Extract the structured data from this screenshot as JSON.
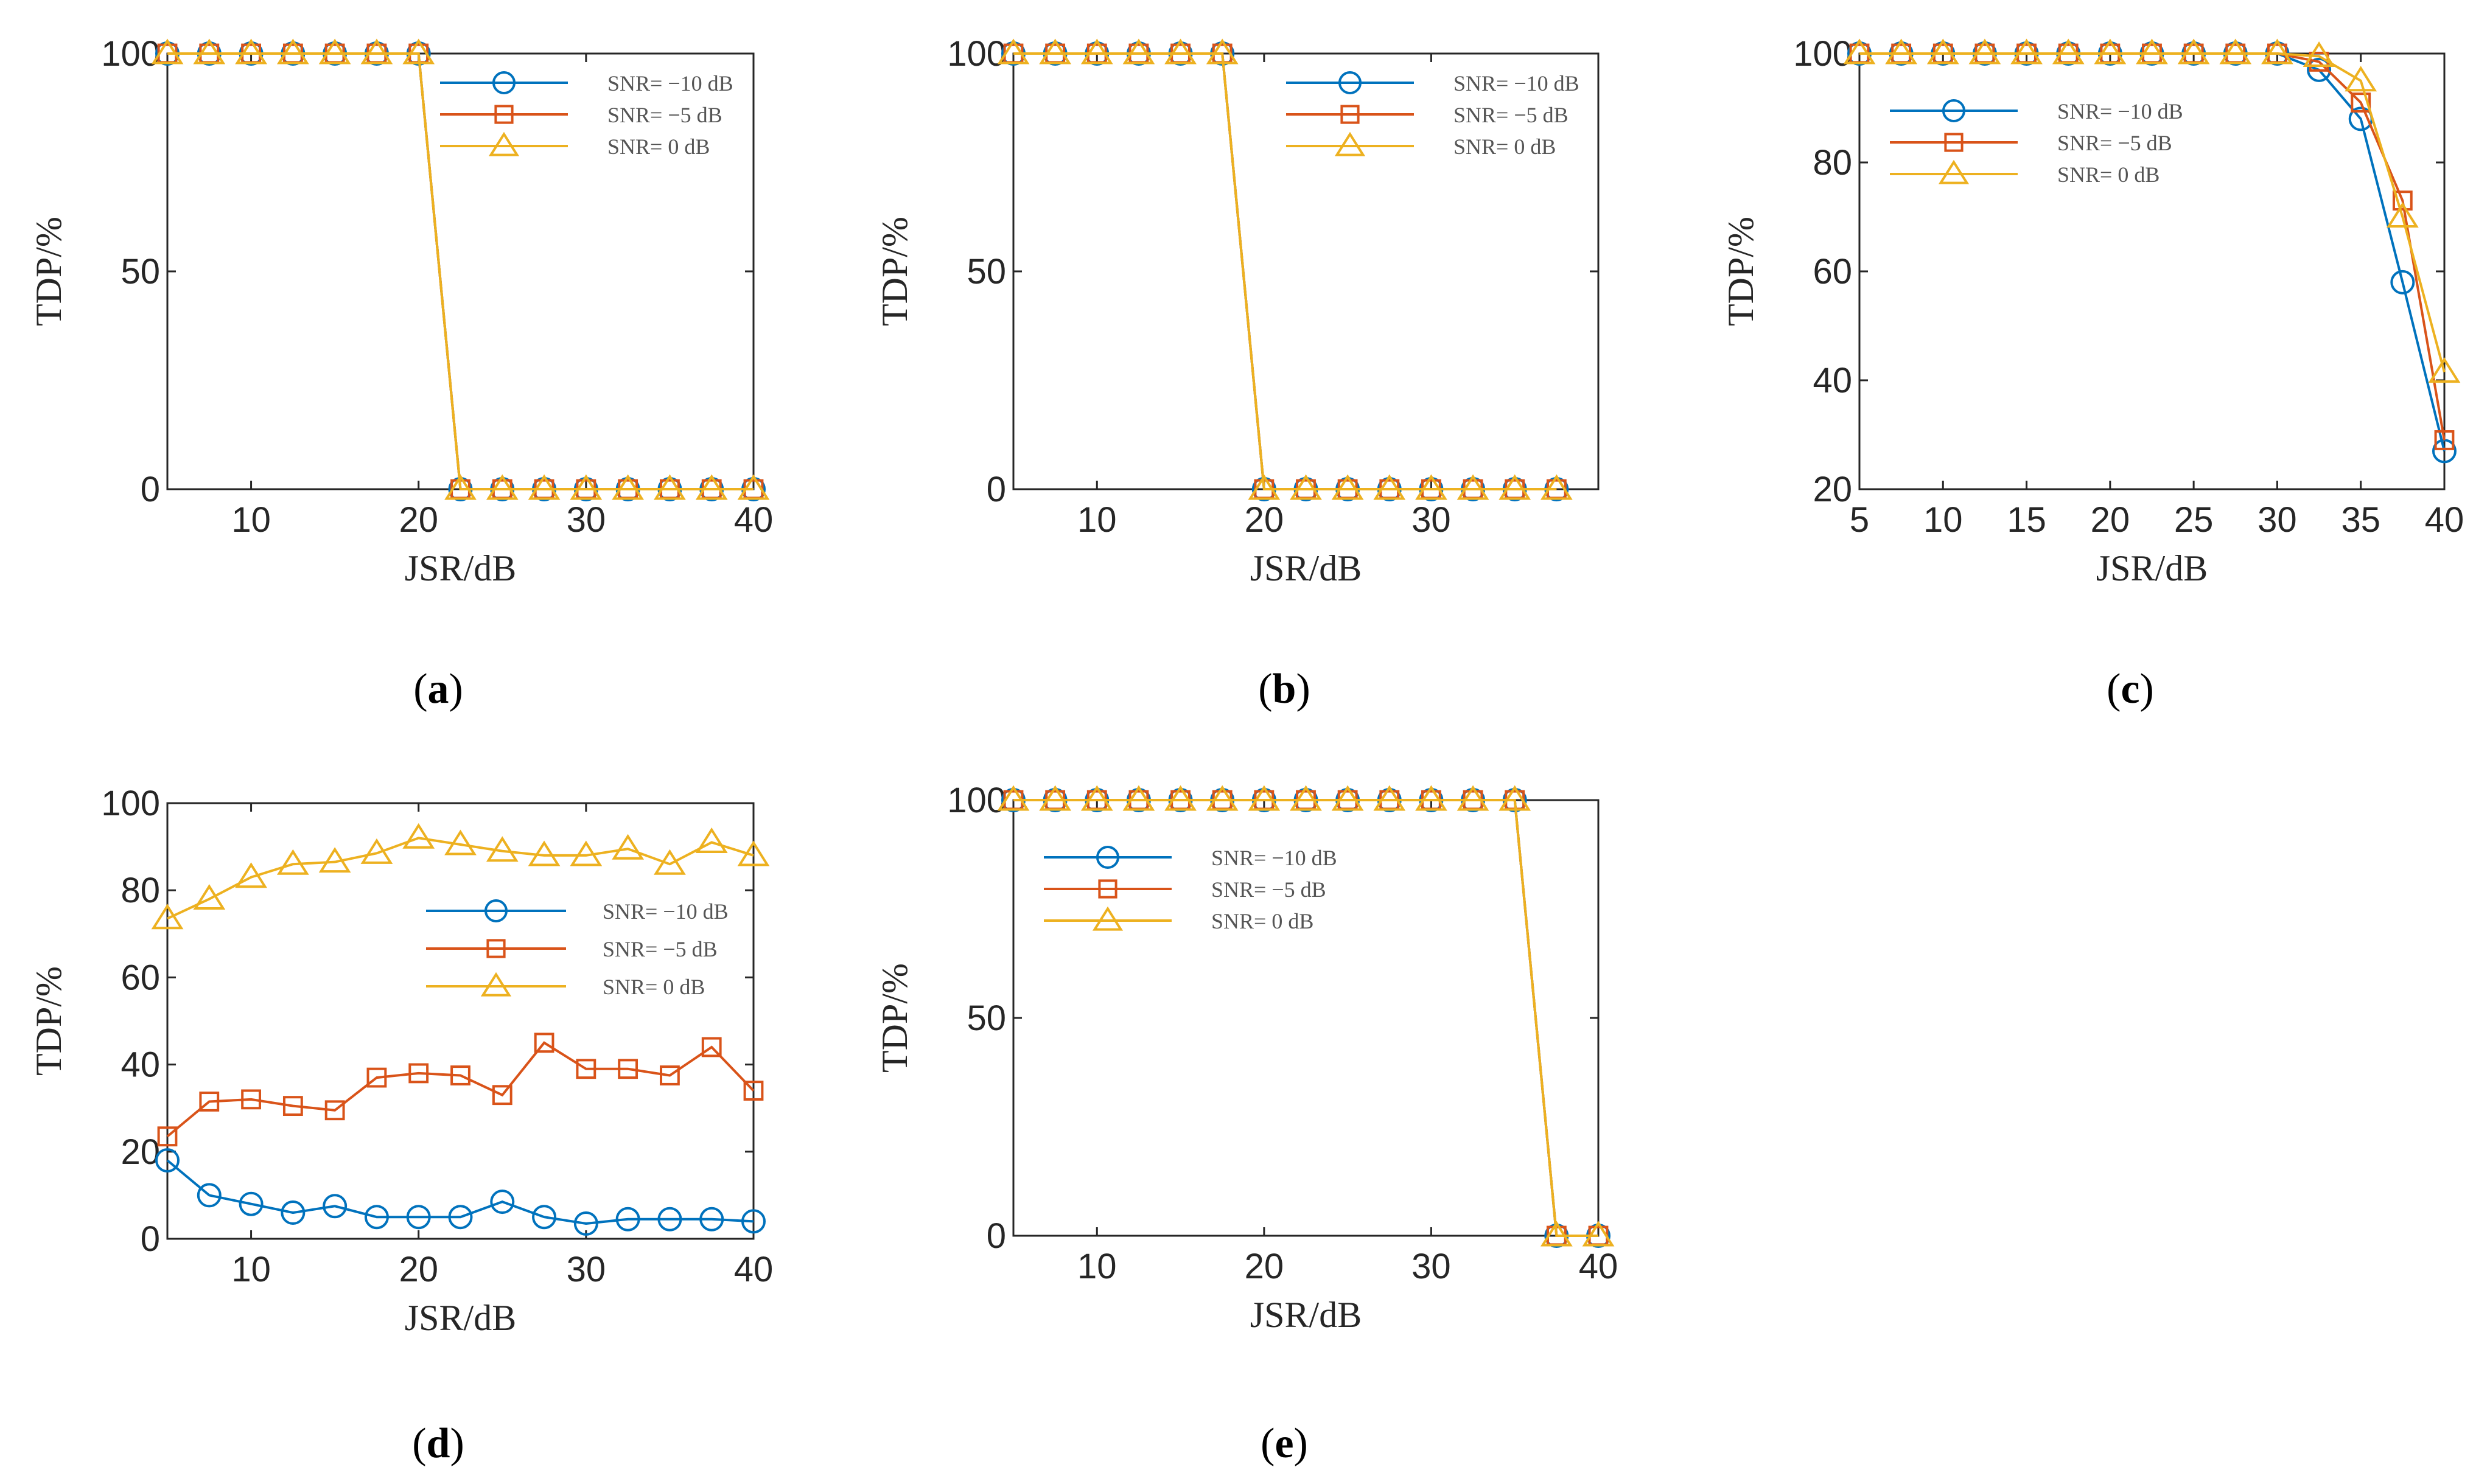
{
  "colors": {
    "snr_m10": "#0072BD",
    "snr_m5": "#D95319",
    "snr_0": "#EDB120",
    "axis": "#262626"
  },
  "chart_data": [
    {
      "type": "line",
      "panel": "a",
      "caption_letter": "a",
      "xlabel": "JSR/dB",
      "ylabel": "TDP/%",
      "xlim": [
        5,
        40
      ],
      "ylim": [
        0,
        100
      ],
      "xticks": [
        10,
        20,
        30,
        40
      ],
      "yticks": [
        0,
        50,
        100
      ],
      "legend_position": "top-right",
      "x": [
        5,
        7.5,
        10,
        12.5,
        15,
        17.5,
        20,
        22.5,
        25,
        27.5,
        30,
        32.5,
        35,
        37.5,
        40
      ],
      "series": [
        {
          "name": "SNR= −10 dB",
          "marker": "circle",
          "color": "#0072BD",
          "values": [
            100,
            100,
            100,
            100,
            100,
            100,
            100,
            0,
            0,
            0,
            0,
            0,
            0,
            0,
            0
          ]
        },
        {
          "name": "SNR= −5 dB",
          "marker": "square",
          "color": "#D95319",
          "values": [
            100,
            100,
            100,
            100,
            100,
            100,
            100,
            0,
            0,
            0,
            0,
            0,
            0,
            0,
            0
          ]
        },
        {
          "name": "SNR= 0 dB",
          "marker": "triangle",
          "color": "#EDB120",
          "values": [
            100,
            100,
            100,
            100,
            100,
            100,
            100,
            0,
            0,
            0,
            0,
            0,
            0,
            0,
            0
          ]
        }
      ]
    },
    {
      "type": "line",
      "panel": "b",
      "caption_letter": "b",
      "xlabel": "JSR/dB",
      "ylabel": "TDP/%",
      "xlim": [
        5,
        40
      ],
      "ylim": [
        0,
        100
      ],
      "xticks": [
        10,
        20,
        30
      ],
      "yticks": [
        0,
        50,
        100
      ],
      "legend_position": "top-right",
      "x": [
        5,
        7.5,
        10,
        12.5,
        15,
        17.5,
        20,
        22.5,
        25,
        27.5,
        30,
        32.5,
        35,
        37.5
      ],
      "series": [
        {
          "name": "SNR= −10 dB",
          "marker": "circle",
          "color": "#0072BD",
          "values": [
            100,
            100,
            100,
            100,
            100,
            100,
            0,
            0,
            0,
            0,
            0,
            0,
            0,
            0
          ]
        },
        {
          "name": "SNR= −5 dB",
          "marker": "square",
          "color": "#D95319",
          "values": [
            100,
            100,
            100,
            100,
            100,
            100,
            0,
            0,
            0,
            0,
            0,
            0,
            0,
            0
          ]
        },
        {
          "name": "SNR= 0 dB",
          "marker": "triangle",
          "color": "#EDB120",
          "values": [
            100,
            100,
            100,
            100,
            100,
            100,
            0,
            0,
            0,
            0,
            0,
            0,
            0,
            0
          ]
        }
      ]
    },
    {
      "type": "line",
      "panel": "c",
      "caption_letter": "c",
      "xlabel": "JSR/dB",
      "ylabel": "TDP/%",
      "xlim": [
        5,
        40
      ],
      "ylim": [
        20,
        100
      ],
      "xticks": [
        5,
        10,
        15,
        20,
        25,
        30,
        35,
        40
      ],
      "yticks": [
        20,
        40,
        60,
        80,
        100
      ],
      "legend_position": "top-left",
      "x": [
        5,
        7.5,
        10,
        12.5,
        15,
        17.5,
        20,
        22.5,
        25,
        27.5,
        30,
        32.5,
        35,
        37.5,
        40
      ],
      "series": [
        {
          "name": "SNR= −10 dB",
          "marker": "circle",
          "color": "#0072BD",
          "values": [
            100,
            100,
            100,
            100,
            100,
            100,
            100,
            100,
            100,
            100,
            100,
            97,
            88,
            58,
            27
          ]
        },
        {
          "name": "SNR= −5 dB",
          "marker": "square",
          "color": "#D95319",
          "values": [
            100,
            100,
            100,
            100,
            100,
            100,
            100,
            100,
            100,
            100,
            100,
            98.5,
            91,
            73,
            29
          ]
        },
        {
          "name": "SNR= 0 dB",
          "marker": "triangle",
          "color": "#EDB120",
          "values": [
            100,
            100,
            100,
            100,
            100,
            100,
            100,
            100,
            100,
            100,
            100,
            99.5,
            95,
            70,
            41.5
          ]
        }
      ]
    },
    {
      "type": "line",
      "panel": "d",
      "caption_letter": "d",
      "xlabel": "JSR/dB",
      "ylabel": "TDP/%",
      "xlim": [
        5,
        40
      ],
      "ylim": [
        0,
        100
      ],
      "xticks": [
        10,
        20,
        30,
        40
      ],
      "yticks": [
        0,
        20,
        40,
        60,
        80,
        100
      ],
      "legend_position": "center-right",
      "x": [
        5,
        7.5,
        10,
        12.5,
        15,
        17.5,
        20,
        22.5,
        25,
        27.5,
        30,
        32.5,
        35,
        37.5,
        40
      ],
      "series": [
        {
          "name": "SNR= −10 dB",
          "marker": "circle",
          "color": "#0072BD",
          "values": [
            18,
            10,
            8,
            6,
            7.5,
            5,
            5,
            5,
            8.5,
            5,
            3.5,
            4.5,
            4.5,
            4.5,
            4
          ]
        },
        {
          "name": "SNR= −5 dB",
          "marker": "square",
          "color": "#D95319",
          "values": [
            23.5,
            31.5,
            32,
            30.5,
            29.5,
            37,
            38,
            37.5,
            33,
            45,
            39,
            39,
            37.5,
            44,
            34
          ]
        },
        {
          "name": "SNR= 0 dB",
          "marker": "triangle",
          "color": "#EDB120",
          "values": [
            73.5,
            78,
            83,
            86,
            86.5,
            88.5,
            92,
            90.5,
            89,
            88,
            88,
            89.5,
            86,
            91,
            88
          ]
        }
      ]
    },
    {
      "type": "line",
      "panel": "e",
      "caption_letter": "e",
      "xlabel": "JSR/dB",
      "ylabel": "TDP/%",
      "xlim": [
        5,
        40
      ],
      "ylim": [
        0,
        100
      ],
      "xticks": [
        10,
        20,
        30,
        40
      ],
      "yticks": [
        0,
        50,
        100
      ],
      "legend_position": "top-left",
      "x": [
        5,
        7.5,
        10,
        12.5,
        15,
        17.5,
        20,
        22.5,
        25,
        27.5,
        30,
        32.5,
        35,
        37.5,
        40
      ],
      "series": [
        {
          "name": "SNR= −10 dB",
          "marker": "circle",
          "color": "#0072BD",
          "values": [
            100,
            100,
            100,
            100,
            100,
            100,
            100,
            100,
            100,
            100,
            100,
            100,
            100,
            0,
            0
          ]
        },
        {
          "name": "SNR= −5 dB",
          "marker": "square",
          "color": "#D95319",
          "values": [
            100,
            100,
            100,
            100,
            100,
            100,
            100,
            100,
            100,
            100,
            100,
            100,
            100,
            0,
            0
          ]
        },
        {
          "name": "SNR=  0 dB",
          "marker": "triangle",
          "color": "#EDB120",
          "values": [
            100,
            100,
            100,
            100,
            100,
            100,
            100,
            100,
            100,
            100,
            100,
            100,
            100,
            0,
            0
          ]
        }
      ]
    }
  ]
}
